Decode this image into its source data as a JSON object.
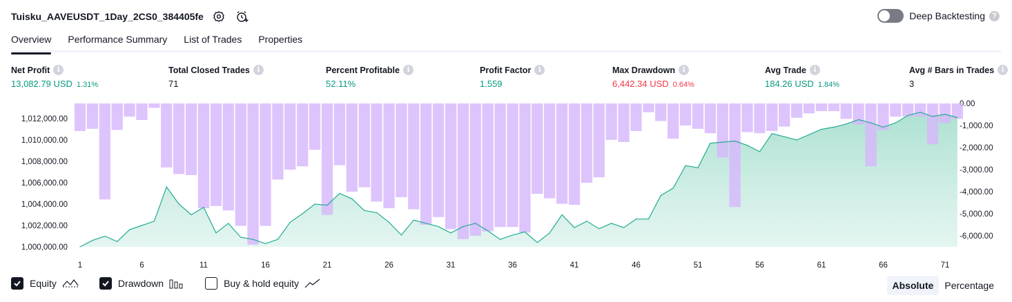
{
  "header": {
    "title": "Tuisku_AAVEUSDT_1Day_2CS0_384405fe"
  },
  "deep_backtesting": {
    "label": "Deep Backtesting",
    "enabled": false
  },
  "tabs": [
    {
      "label": "Overview",
      "active": true
    },
    {
      "label": "Performance Summary",
      "active": false
    },
    {
      "label": "List of Trades",
      "active": false
    },
    {
      "label": "Properties",
      "active": false
    }
  ],
  "metrics": {
    "net_profit": {
      "label": "Net Profit",
      "value": "13,082.79 USD",
      "pct": "1.31%",
      "color": "#089981"
    },
    "total_closed_trades": {
      "label": "Total Closed Trades",
      "value": "71"
    },
    "percent_profitable": {
      "label": "Percent Profitable",
      "value": "52.11%",
      "color": "#089981"
    },
    "profit_factor": {
      "label": "Profit Factor",
      "value": "1.559",
      "color": "#089981"
    },
    "max_drawdown": {
      "label": "Max Drawdown",
      "value": "6,442.34 USD",
      "pct": "0.64%",
      "color": "#f23645"
    },
    "avg_trade": {
      "label": "Avg Trade",
      "value": "184.26 USD",
      "pct": "1.84%",
      "color": "#089981"
    },
    "avg_bars": {
      "label": "Avg # Bars in Trades",
      "value": "3"
    }
  },
  "legend": {
    "equity": {
      "label": "Equity",
      "checked": true
    },
    "drawdown": {
      "label": "Drawdown",
      "checked": true
    },
    "buy_hold": {
      "label": "Buy & hold equity",
      "checked": false
    }
  },
  "mode": {
    "absolute": "Absolute",
    "percentage": "Percentage",
    "selected": "Absolute"
  },
  "chart_data": {
    "type": "area",
    "left_axis_ticks": [
      "1,012,000.00",
      "1,010,000.00",
      "1,008,000.00",
      "1,006,000.00",
      "1,004,000.00",
      "1,002,000.00",
      "1,000,000.00"
    ],
    "right_axis_ticks": [
      "0.00",
      "-1,000.00",
      "-2,000.00",
      "-3,000.00",
      "-4,000.00",
      "-5,000.00",
      "-6,000.00"
    ],
    "x_ticks": [
      "1",
      "6",
      "11",
      "16",
      "21",
      "26",
      "31",
      "36",
      "41",
      "46",
      "51",
      "56",
      "61",
      "66",
      "71"
    ],
    "equity_ylim": [
      1000000,
      1013000
    ],
    "drawdown_ylim": [
      -6500,
      0
    ],
    "colors": {
      "equity_line": "#22ab94",
      "equity_fill": "#b2e3d6",
      "drawdown": "#d7b7fb"
    },
    "series": [
      {
        "name": "Equity",
        "values": [
          1000000,
          1000600,
          1001000,
          1000500,
          1001600,
          1002000,
          1002400,
          1005600,
          1004000,
          1003000,
          1003700,
          1001300,
          1002200,
          1000900,
          1000700,
          1000300,
          1000700,
          1002300,
          1003100,
          1004000,
          1003900,
          1005000,
          1004500,
          1003400,
          1003200,
          1002300,
          1001100,
          1002500,
          1002200,
          1001900,
          1001300,
          1001900,
          1002200,
          1001500,
          1000700,
          1001100,
          1001400,
          1000400,
          1001300,
          1003000,
          1001800,
          1002400,
          1001700,
          1002200,
          1001800,
          1002600,
          1002600,
          1004800,
          1005500,
          1007600,
          1007400,
          1009700,
          1009800,
          1009900,
          1009500,
          1008900,
          1010600,
          1010300,
          1010000,
          1010500,
          1011000,
          1011200,
          1011500,
          1011900,
          1011600,
          1011200,
          1011600,
          1012300,
          1012600,
          1012200,
          1012400,
          1012100
        ]
      },
      {
        "name": "Drawdown",
        "values": [
          -1250,
          -1150,
          -4350,
          -1200,
          -600,
          -750,
          -200,
          -2900,
          -3200,
          -3250,
          -4750,
          -4650,
          -4850,
          -5550,
          -6400,
          -5550,
          -3450,
          -3000,
          -2850,
          -2100,
          -5050,
          -2800,
          -4000,
          -3800,
          -4450,
          -4750,
          -4250,
          -4800,
          -5500,
          -5150,
          -5700,
          -6150,
          -6000,
          -5800,
          -5600,
          -5600,
          -5850,
          -4100,
          -4300,
          -4550,
          -4600,
          -3600,
          -3350,
          -1650,
          -1750,
          -1250,
          -400,
          -800,
          -1600,
          -1000,
          -1150,
          -1350,
          -2450,
          -4700,
          -1300,
          -1350,
          -1250,
          -1050,
          -650,
          -450,
          -350,
          -350,
          -700,
          -950,
          -2850,
          -1200,
          -600,
          -600,
          -600,
          -1850,
          -900,
          -700
        ]
      }
    ]
  }
}
